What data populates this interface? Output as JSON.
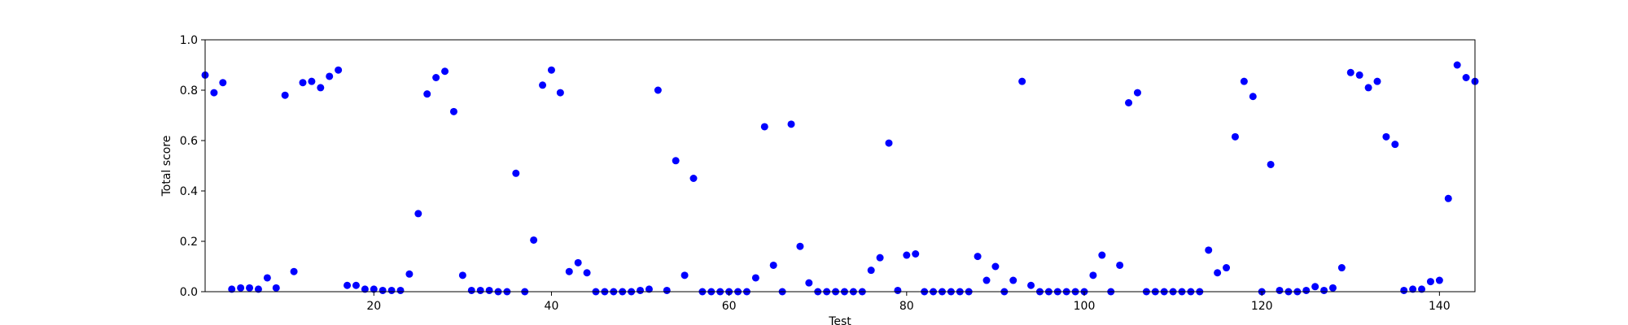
{
  "chart_data": {
    "type": "scatter",
    "title": "",
    "xlabel": "Test",
    "ylabel": "Total score",
    "xlim": [
      1,
      144
    ],
    "ylim": [
      0.0,
      1.0
    ],
    "x_ticks": [
      20,
      40,
      60,
      80,
      100,
      120,
      140
    ],
    "y_ticks": [
      0.0,
      0.2,
      0.4,
      0.6,
      0.8,
      1.0
    ],
    "x_tick_labels": [
      "20",
      "40",
      "60",
      "80",
      "100",
      "120",
      "140"
    ],
    "y_tick_labels": [
      "0.0",
      "0.2",
      "0.4",
      "0.6",
      "0.8",
      "1.0"
    ],
    "grid": false,
    "marker_color": "#0000ff",
    "series": [
      {
        "x": [
          1,
          2,
          3,
          4,
          5,
          6,
          7,
          8,
          9,
          10,
          11,
          12,
          13,
          14,
          15,
          16,
          17,
          18,
          19,
          20,
          21,
          22,
          23,
          24,
          25,
          26,
          27,
          28,
          29,
          30,
          31,
          32,
          33,
          34,
          35,
          36,
          37,
          38,
          39,
          40,
          41,
          42,
          43,
          44,
          45,
          46,
          47,
          48,
          49,
          50,
          51,
          52,
          53,
          54,
          55,
          56,
          57,
          58,
          59,
          60,
          61,
          62,
          63,
          64,
          65,
          66,
          67,
          68,
          69,
          70,
          71,
          72,
          73,
          74,
          75,
          76,
          77,
          78,
          79,
          80,
          81,
          82,
          83,
          84,
          85,
          86,
          87,
          88,
          89,
          90,
          91,
          92,
          93,
          94,
          95,
          96,
          97,
          98,
          99,
          100,
          101,
          102,
          103,
          104,
          105,
          106,
          107,
          108,
          109,
          110,
          111,
          112,
          113,
          114,
          115,
          116,
          117,
          118,
          119,
          120,
          121,
          122,
          123,
          124,
          125,
          126,
          127,
          128,
          129,
          130,
          131,
          132,
          133,
          134,
          135,
          136,
          137,
          138,
          139,
          140,
          141,
          142,
          143,
          144
        ],
        "y": [
          0.86,
          0.79,
          0.83,
          0.01,
          0.015,
          0.015,
          0.01,
          0.055,
          0.015,
          0.78,
          0.08,
          0.83,
          0.835,
          0.81,
          0.855,
          0.88,
          0.025,
          0.025,
          0.01,
          0.01,
          0.005,
          0.005,
          0.005,
          0.07,
          0.31,
          0.785,
          0.85,
          0.875,
          0.715,
          0.065,
          0.005,
          0.005,
          0.005,
          0.0,
          0.0,
          0.47,
          0.0,
          0.205,
          0.82,
          0.88,
          0.79,
          0.08,
          0.115,
          0.075,
          0.0,
          0.0,
          0.0,
          0.0,
          0.0,
          0.005,
          0.01,
          0.8,
          0.005,
          0.52,
          0.065,
          0.45,
          0.0,
          0.0,
          0.0,
          0.0,
          0.0,
          0.0,
          0.055,
          0.655,
          0.105,
          0.0,
          0.665,
          0.18,
          0.035,
          0.0,
          0.0,
          0.0,
          0.0,
          0.0,
          0.0,
          0.085,
          0.135,
          0.59,
          0.005,
          0.145,
          0.15,
          0.0,
          0.0,
          0.0,
          0.0,
          0.0,
          0.0,
          0.14,
          0.045,
          0.1,
          0.0,
          0.045,
          0.835,
          0.025,
          0.0,
          0.0,
          0.0,
          0.0,
          0.0,
          0.0,
          0.065,
          0.145,
          0.0,
          0.105,
          0.75,
          0.79,
          0.0,
          0.0,
          0.0,
          0.0,
          0.0,
          0.0,
          0.0,
          0.165,
          0.075,
          0.095,
          0.615,
          0.835,
          0.775,
          0.0,
          0.505,
          0.005,
          0.0,
          0.0,
          0.005,
          0.02,
          0.005,
          0.015,
          0.095,
          0.87,
          0.86,
          0.81,
          0.835,
          0.615,
          0.585,
          0.005,
          0.01,
          0.01,
          0.04,
          0.045,
          0.37,
          0.9,
          0.85,
          0.835
        ]
      }
    ]
  }
}
